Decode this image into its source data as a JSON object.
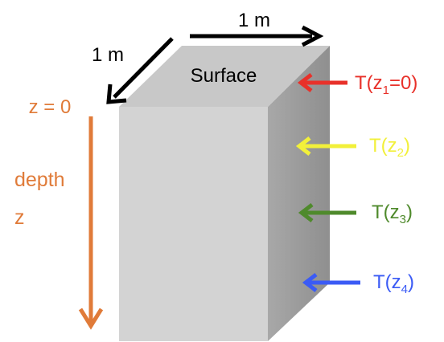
{
  "dimensions": {
    "width_label": "1 m",
    "depth_label": "1 m"
  },
  "block": {
    "top_label": "Surface"
  },
  "depth_axis": {
    "origin_label": "z = 0",
    "label_line1": "depth",
    "label_line2": "z",
    "color": "#E07B39"
  },
  "temperatures": [
    {
      "prefix": "T(z",
      "sub": "1",
      "suffix": "=0)",
      "color": "#E8312A"
    },
    {
      "prefix": "T(z",
      "sub": "2",
      "suffix": ")",
      "color": "#F2F03A"
    },
    {
      "prefix": "T(z",
      "sub": "3",
      "suffix": ")",
      "color": "#4F8A2C"
    },
    {
      "prefix": "T(z",
      "sub": "4",
      "suffix": ")",
      "color": "#3B5BF5"
    }
  ],
  "colors": {
    "block_top": "#C8C8C8",
    "block_front": "#D3D3D3",
    "block_side": "#9E9E9E",
    "arrow_black": "#000000"
  }
}
